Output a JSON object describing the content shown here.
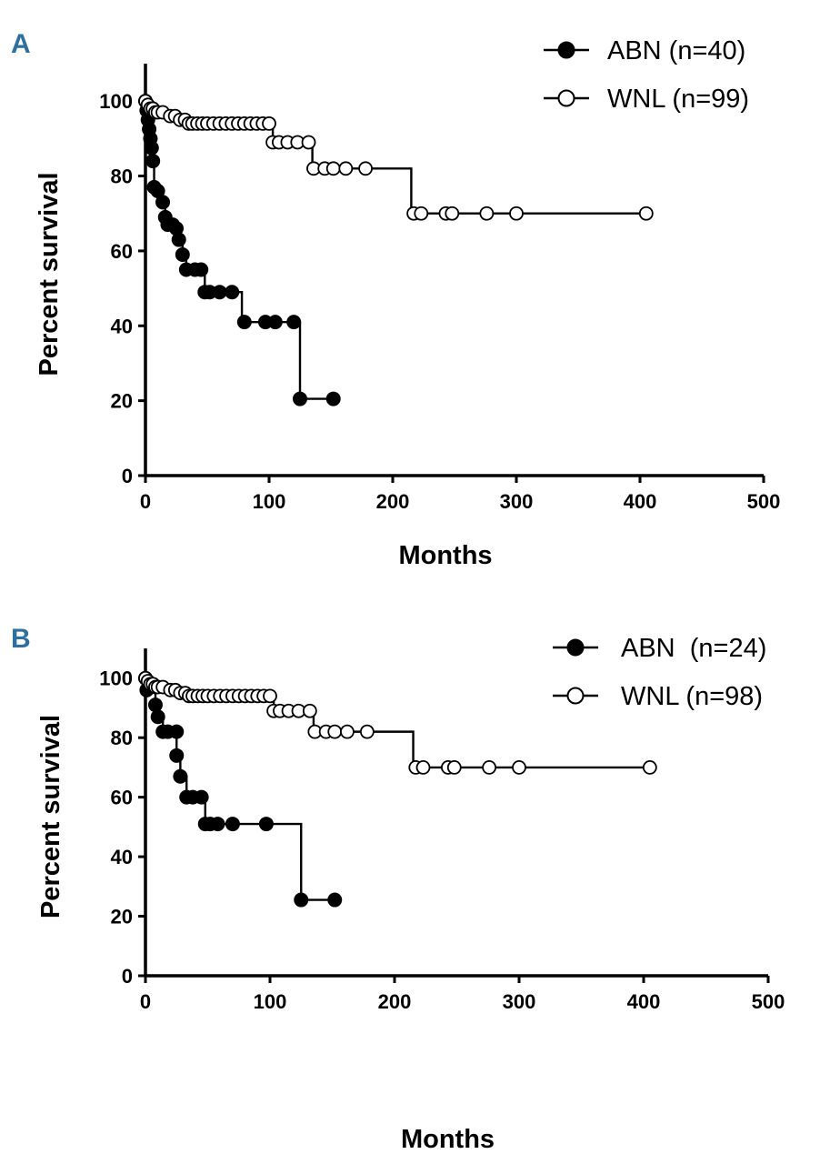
{
  "chart_data": [
    {
      "panel": "A",
      "type": "line",
      "xlabel": "Months",
      "ylabel": "Percent survival",
      "xlim": [
        0,
        500
      ],
      "ylim": [
        0,
        110
      ],
      "xticks": [
        0,
        100,
        200,
        300,
        400,
        500
      ],
      "yticks": [
        0,
        20,
        40,
        60,
        80,
        100
      ],
      "legend_position": "top-right",
      "series": [
        {
          "name": "ABN (n=40)",
          "marker": "filled",
          "steps": [
            [
              0,
              100
            ],
            [
              1,
              97.5
            ],
            [
              2,
              95
            ],
            [
              3,
              92.5
            ],
            [
              4,
              90
            ],
            [
              5,
              87.5
            ],
            [
              6,
              84
            ],
            [
              7,
              77
            ],
            [
              10,
              76
            ],
            [
              14,
              73
            ],
            [
              16,
              69
            ],
            [
              18,
              67
            ],
            [
              22,
              67
            ],
            [
              25,
              66
            ],
            [
              27,
              63
            ],
            [
              30,
              59
            ],
            [
              33,
              55
            ],
            [
              40,
              55
            ],
            [
              45,
              55
            ],
            [
              48,
              49
            ],
            [
              52,
              49
            ],
            [
              60,
              49
            ],
            [
              70,
              49
            ],
            [
              78,
              41
            ],
            [
              98,
              41
            ],
            [
              105,
              41
            ],
            [
              120,
              41
            ],
            [
              125,
              20.5
            ],
            [
              152,
              20.5
            ]
          ],
          "markers": [
            [
              0,
              100
            ],
            [
              1,
              97.5
            ],
            [
              2,
              95
            ],
            [
              3,
              92.5
            ],
            [
              4,
              90
            ],
            [
              5,
              87.5
            ],
            [
              6,
              84
            ],
            [
              7,
              77
            ],
            [
              10,
              76
            ],
            [
              14,
              73
            ],
            [
              16,
              69
            ],
            [
              18,
              67
            ],
            [
              22,
              67
            ],
            [
              25,
              66
            ],
            [
              27,
              63
            ],
            [
              30,
              59
            ],
            [
              33,
              55
            ],
            [
              40,
              55
            ],
            [
              45,
              55
            ],
            [
              48,
              49
            ],
            [
              52,
              49
            ],
            [
              60,
              49
            ],
            [
              70,
              49
            ],
            [
              80,
              41
            ],
            [
              97,
              41
            ],
            [
              105,
              41
            ],
            [
              120,
              41
            ],
            [
              125,
              20.5
            ],
            [
              152,
              20.5
            ]
          ]
        },
        {
          "name": "WNL (n=99)",
          "marker": "open",
          "steps": [
            [
              0,
              100
            ],
            [
              2,
              99
            ],
            [
              4,
              98
            ],
            [
              10,
              97
            ],
            [
              20,
              96
            ],
            [
              28,
              95
            ],
            [
              35,
              94
            ],
            [
              100,
              94
            ],
            [
              103,
              89
            ],
            [
              130,
              89
            ],
            [
              135,
              82
            ],
            [
              178,
              82
            ],
            [
              215,
              70
            ],
            [
              405,
              70
            ]
          ],
          "markers": [
            [
              0,
              100
            ],
            [
              2,
              99
            ],
            [
              4,
              98
            ],
            [
              6,
              98
            ],
            [
              8,
              97
            ],
            [
              10,
              97
            ],
            [
              14,
              97
            ],
            [
              20,
              96
            ],
            [
              24,
              96
            ],
            [
              28,
              95
            ],
            [
              32,
              95
            ],
            [
              35,
              94
            ],
            [
              38,
              94
            ],
            [
              42,
              94
            ],
            [
              46,
              94
            ],
            [
              50,
              94
            ],
            [
              55,
              94
            ],
            [
              60,
              94
            ],
            [
              65,
              94
            ],
            [
              70,
              94
            ],
            [
              75,
              94
            ],
            [
              80,
              94
            ],
            [
              85,
              94
            ],
            [
              90,
              94
            ],
            [
              95,
              94
            ],
            [
              100,
              94
            ],
            [
              103,
              89
            ],
            [
              108,
              89
            ],
            [
              115,
              89
            ],
            [
              123,
              89
            ],
            [
              132,
              89
            ],
            [
              136,
              82
            ],
            [
              145,
              82
            ],
            [
              152,
              82
            ],
            [
              162,
              82
            ],
            [
              178,
              82
            ],
            [
              217,
              70
            ],
            [
              223,
              70
            ],
            [
              243,
              70
            ],
            [
              248,
              70
            ],
            [
              276,
              70
            ],
            [
              300,
              70
            ],
            [
              405,
              70
            ]
          ]
        }
      ]
    },
    {
      "panel": "B",
      "type": "line",
      "xlabel": "Months",
      "ylabel": "Percent survival",
      "xlim": [
        0,
        500
      ],
      "ylim": [
        0,
        110
      ],
      "xticks": [
        0,
        100,
        200,
        300,
        400,
        500
      ],
      "yticks": [
        0,
        20,
        40,
        60,
        80,
        100
      ],
      "legend_position": "top-right",
      "series": [
        {
          "name": "ABN  (n=24)",
          "marker": "filled",
          "steps": [
            [
              0,
              100
            ],
            [
              1,
              96
            ],
            [
              8,
              91
            ],
            [
              10,
              87
            ],
            [
              14,
              82
            ],
            [
              25,
              74
            ],
            [
              28,
              67
            ],
            [
              33,
              60
            ],
            [
              45,
              60
            ],
            [
              48,
              51
            ],
            [
              97,
              51
            ],
            [
              125,
              25.5
            ],
            [
              152,
              25.5
            ]
          ],
          "markers": [
            [
              0,
              100
            ],
            [
              1,
              96
            ],
            [
              8,
              91
            ],
            [
              10,
              87
            ],
            [
              14,
              82
            ],
            [
              18,
              82
            ],
            [
              25,
              82
            ],
            [
              25,
              74
            ],
            [
              28,
              67
            ],
            [
              33,
              60
            ],
            [
              38,
              60
            ],
            [
              45,
              60
            ],
            [
              48,
              51
            ],
            [
              52,
              51
            ],
            [
              58,
              51
            ],
            [
              70,
              51
            ],
            [
              97,
              51
            ],
            [
              125,
              25.5
            ],
            [
              152,
              25.5
            ]
          ]
        },
        {
          "name": "WNL (n=98)",
          "marker": "open",
          "steps": [
            [
              0,
              100
            ],
            [
              2,
              99
            ],
            [
              4,
              98
            ],
            [
              10,
              97
            ],
            [
              20,
              96
            ],
            [
              28,
              95
            ],
            [
              35,
              94
            ],
            [
              100,
              94
            ],
            [
              103,
              89
            ],
            [
              130,
              89
            ],
            [
              135,
              82
            ],
            [
              178,
              82
            ],
            [
              215,
              70
            ],
            [
              405,
              70
            ]
          ],
          "markers": [
            [
              0,
              100
            ],
            [
              2,
              99
            ],
            [
              4,
              98
            ],
            [
              6,
              98
            ],
            [
              8,
              97
            ],
            [
              10,
              97
            ],
            [
              14,
              97
            ],
            [
              20,
              96
            ],
            [
              24,
              96
            ],
            [
              28,
              95
            ],
            [
              32,
              95
            ],
            [
              35,
              94
            ],
            [
              38,
              94
            ],
            [
              42,
              94
            ],
            [
              46,
              94
            ],
            [
              50,
              94
            ],
            [
              55,
              94
            ],
            [
              60,
              94
            ],
            [
              65,
              94
            ],
            [
              70,
              94
            ],
            [
              75,
              94
            ],
            [
              80,
              94
            ],
            [
              85,
              94
            ],
            [
              90,
              94
            ],
            [
              95,
              94
            ],
            [
              100,
              94
            ],
            [
              103,
              89
            ],
            [
              108,
              89
            ],
            [
              115,
              89
            ],
            [
              123,
              89
            ],
            [
              132,
              89
            ],
            [
              136,
              82
            ],
            [
              145,
              82
            ],
            [
              152,
              82
            ],
            [
              162,
              82
            ],
            [
              178,
              82
            ],
            [
              217,
              70
            ],
            [
              223,
              70
            ],
            [
              243,
              70
            ],
            [
              248,
              70
            ],
            [
              276,
              70
            ],
            [
              300,
              70
            ],
            [
              405,
              70
            ]
          ]
        }
      ]
    }
  ]
}
